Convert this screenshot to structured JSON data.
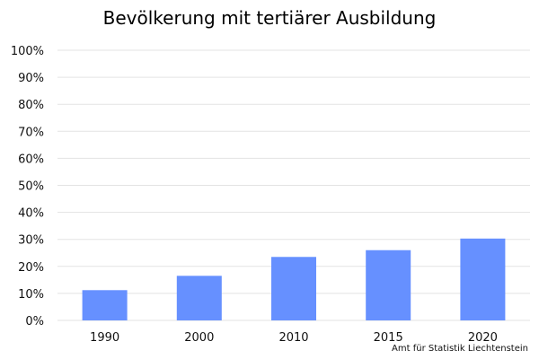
{
  "chart_data": {
    "type": "bar",
    "title": "Bevölkerung mit tertiärer Ausbildung",
    "categories": [
      "1990",
      "2000",
      "2010",
      "2015",
      "2020"
    ],
    "values": [
      11.2,
      16.5,
      23.5,
      26.0,
      30.3
    ],
    "value_unit": "%",
    "ylim": [
      0,
      100
    ],
    "yticks": [
      "0%",
      "10%",
      "20%",
      "30%",
      "40%",
      "50%",
      "60%",
      "70%",
      "80%",
      "90%",
      "100%"
    ],
    "grid": true,
    "bar_color": "#6690ff",
    "gridline_color": "#e3e3e3"
  },
  "source_note": "Amt für Statistik Liechtenstein"
}
